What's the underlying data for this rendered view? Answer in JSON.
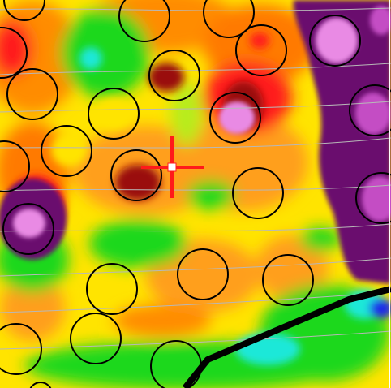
{
  "map": {
    "background_color": "#ffe400",
    "palette": {
      "deep_purple": "#6a0a6e",
      "magenta": "#c44ec4",
      "pink": "#e98ae4",
      "red": "#ff1a1a",
      "dark_red": "#9a0f0a",
      "orange": "#ff7a00",
      "light_orange": "#ff9f1a",
      "yellow": "#ffe400",
      "lime": "#b7ec1e",
      "green": "#1ed81e",
      "cyan": "#1ee8d8",
      "blue": "#1a2ae8",
      "white": "#ffffff"
    },
    "marker_color": "#ff1a1a",
    "circle_color": "#000000",
    "line_color": "#000000",
    "contour_color": "#b8b8b8"
  }
}
